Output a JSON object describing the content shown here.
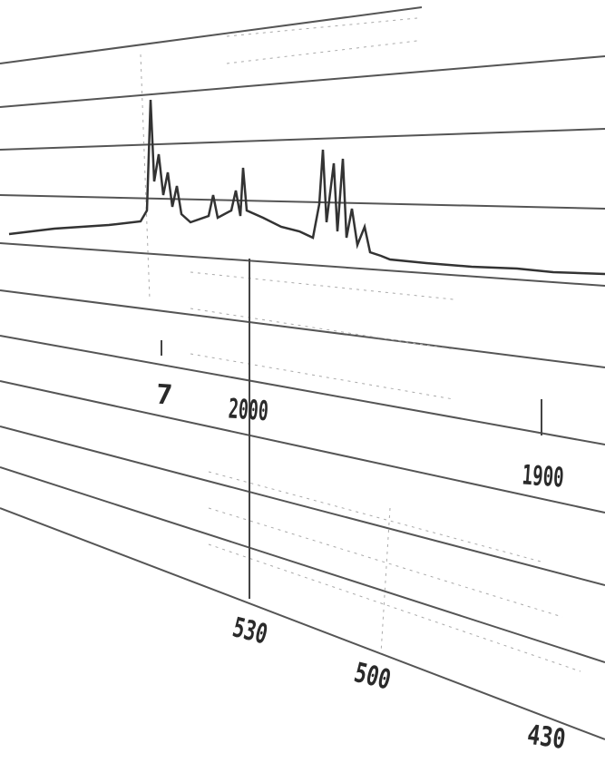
{
  "upper_labels": [
    "7",
    "2000",
    "1900"
  ],
  "lower_labels": [
    "530",
    "500",
    "430"
  ]
}
